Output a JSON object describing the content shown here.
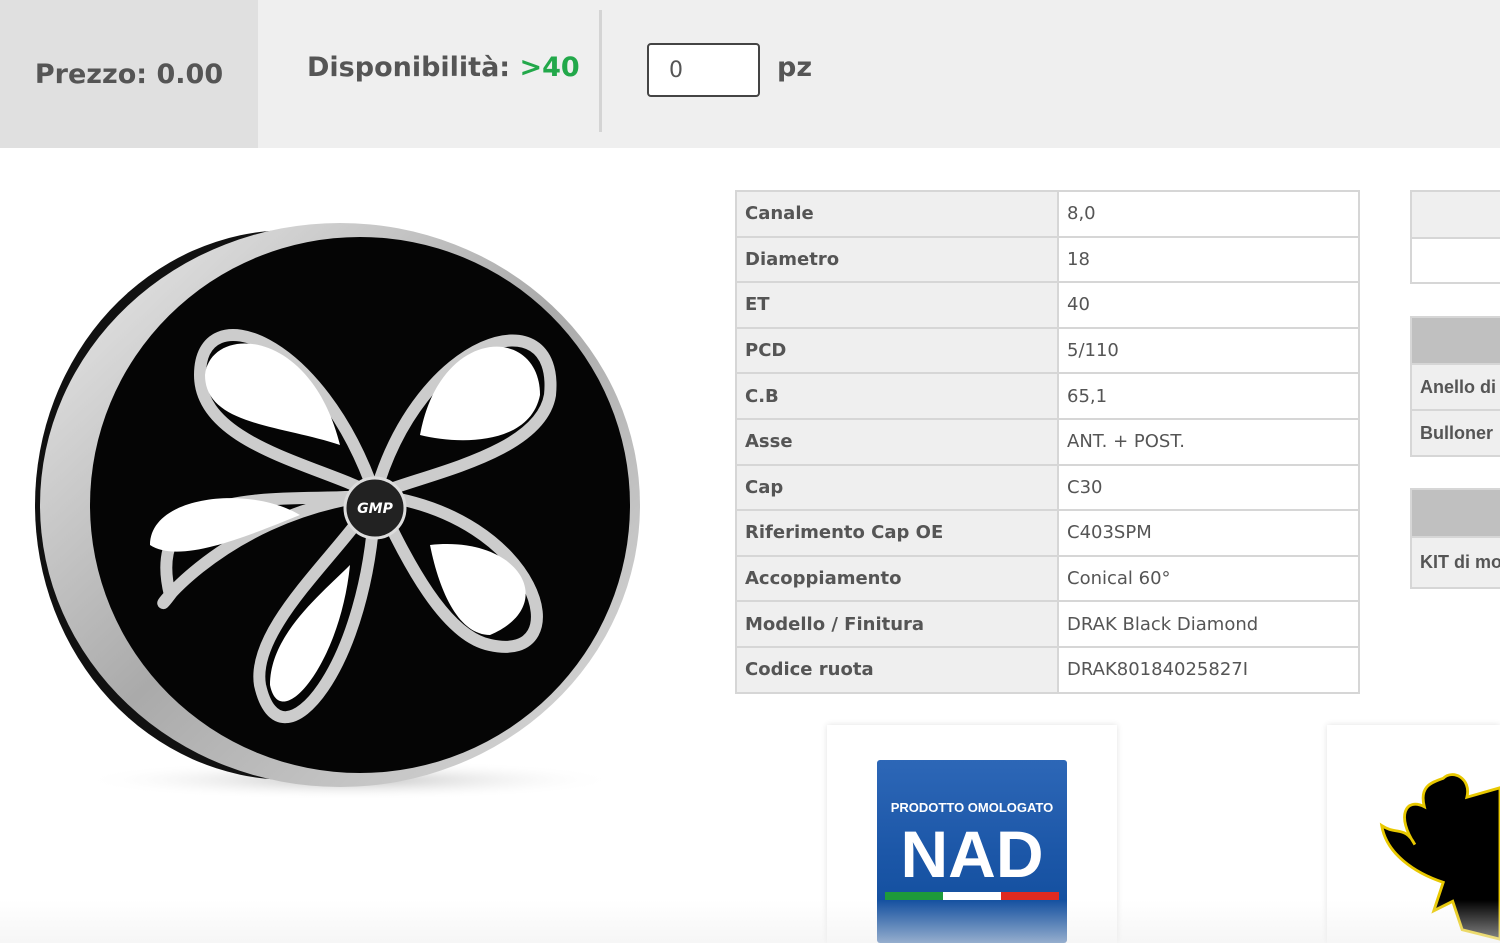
{
  "topbar": {
    "price_label": "Prezzo: 0.00",
    "availability_label": "Disponibilità:",
    "availability_value": ">40",
    "quantity_value": "0",
    "unit": "pz",
    "availability_color": "#22a84a"
  },
  "specs": [
    {
      "label": "Canale",
      "value": "8,0"
    },
    {
      "label": "Diametro",
      "value": "18"
    },
    {
      "label": "ET",
      "value": "40"
    },
    {
      "label": "PCD",
      "value": "5/110"
    },
    {
      "label": "C.B",
      "value": "65,1"
    },
    {
      "label": "Asse",
      "value": "ANT. + POST."
    },
    {
      "label": "Cap",
      "value": "C30"
    },
    {
      "label": "Riferimento Cap OE",
      "value": "C403SPM"
    },
    {
      "label": "Accoppiamento",
      "value": "Conical 60°"
    },
    {
      "label": "Modello / Finitura",
      "value": "DRAK Black Diamond"
    },
    {
      "label": "Codice ruota",
      "value": "DRAK80184025827I"
    }
  ],
  "accessories": {
    "items": [
      "Anello di",
      "Bulloner"
    ],
    "kit": [
      "KIT di mo"
    ]
  },
  "product_image": {
    "logo_text": "GMP",
    "alt": "wheel"
  },
  "badges": {
    "nad_top": "PRODOTTO OMOLOGATO",
    "nad_main": "NAD",
    "second": "german-eagle-icon"
  }
}
